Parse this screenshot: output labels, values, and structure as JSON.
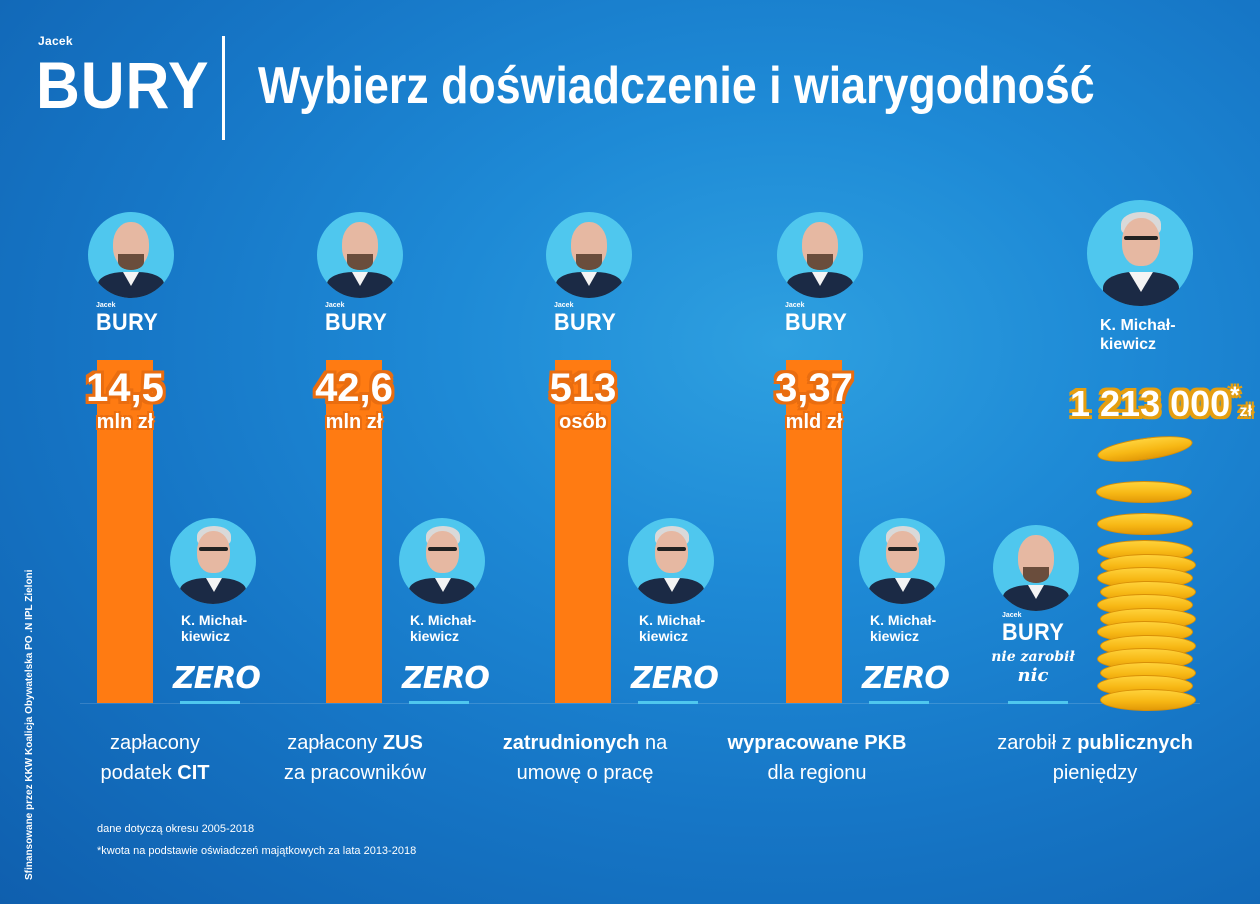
{
  "header": {
    "logo_first_name": "Jacek",
    "logo_last_name": "BURY",
    "headline": "Wybierz doświadczenie i wiarygodność"
  },
  "candidate": {
    "first_name": "Jacek",
    "last_name": "BURY"
  },
  "opponent": {
    "name_line1": "K. Michał-",
    "name_line2": "kiewicz"
  },
  "comparisons": [
    {
      "value": "14,5",
      "unit": "mln zł",
      "opponent_value": "ZERO",
      "caption_line1": [
        {
          "t": "zapłacony",
          "b": false
        }
      ],
      "caption_line2": [
        {
          "t": "podatek ",
          "b": false
        },
        {
          "t": "CIT",
          "b": true
        }
      ]
    },
    {
      "value": "42,6",
      "unit": "mln zł",
      "opponent_value": "ZERO",
      "caption_line1": [
        {
          "t": "zapłacony ",
          "b": false
        },
        {
          "t": "ZUS",
          "b": true
        }
      ],
      "caption_line2": [
        {
          "t": "za pracowników",
          "b": false
        }
      ]
    },
    {
      "value": "513",
      "unit": "osób",
      "opponent_value": "ZERO",
      "caption_line1": [
        {
          "t": "zatrudnionych",
          "b": true
        },
        {
          "t": " na",
          "b": false
        }
      ],
      "caption_line2": [
        {
          "t": "umowę o pracę",
          "b": false
        }
      ]
    },
    {
      "value": "3,37",
      "unit": "mld zł",
      "opponent_value": "ZERO",
      "caption_line1": [
        {
          "t": "wypracowane PKB",
          "b": true
        }
      ],
      "caption_line2": [
        {
          "t": "dla regionu",
          "b": false
        }
      ]
    }
  ],
  "last_comparison": {
    "amount": "1 213 000",
    "asterisk": "*",
    "unit": "zł",
    "candidate_line1": "nie zarobił",
    "candidate_line2": "nic",
    "caption_line1_a": "zarobił z ",
    "caption_line1_b": "publicznych",
    "caption_line2": "pieniędzy"
  },
  "notes": {
    "period": "dane dotyczą okresu 2005-2018",
    "footnote": "*kwota na podstawie oświadczeń majątkowych za lata 2013-2018"
  },
  "side_note": "Sfinansowane przez KKW Koalicja Obywatelska PO .N IPL Zieloni",
  "colors": {
    "bar_orange": "#ff7b12",
    "accent_cyan": "#4fc7ee",
    "coin_gold": "#f7b815",
    "background_blue": "#1e8ad6"
  }
}
